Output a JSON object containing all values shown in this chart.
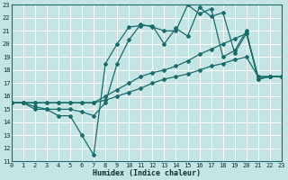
{
  "xlabel": "Humidex (Indice chaleur)",
  "bg_color": "#c5e5e5",
  "grid_color": "#ffffff",
  "line_color": "#1a6b6b",
  "xlim": [
    0,
    23
  ],
  "ylim": [
    11,
    23
  ],
  "xticks": [
    0,
    1,
    2,
    3,
    4,
    5,
    6,
    7,
    8,
    9,
    10,
    11,
    12,
    13,
    14,
    15,
    16,
    17,
    18,
    19,
    20,
    21,
    22,
    23
  ],
  "yticks": [
    11,
    12,
    13,
    14,
    15,
    16,
    17,
    18,
    19,
    20,
    21,
    22,
    23
  ],
  "lines": [
    [
      15.5,
      15.5,
      15.0,
      15.0,
      14.5,
      14.5,
      13.0,
      11.5,
      18.5,
      20.0,
      21.3,
      21.4,
      21.4,
      20.0,
      21.2,
      20.6,
      22.8,
      22.1,
      22.4,
      19.3,
      20.8,
      17.3,
      17.5,
      17.5
    ],
    [
      15.5,
      15.5,
      15.2,
      15.0,
      15.0,
      15.0,
      14.8,
      14.5,
      15.5,
      18.5,
      20.3,
      21.5,
      21.3,
      21.0,
      21.0,
      23.0,
      22.3,
      22.7,
      19.0,
      19.5,
      21.0,
      17.3,
      17.5,
      17.5
    ],
    [
      15.5,
      15.5,
      15.5,
      15.5,
      15.5,
      15.5,
      15.5,
      15.5,
      16.0,
      16.5,
      17.0,
      17.5,
      17.8,
      18.0,
      18.3,
      18.7,
      19.2,
      19.6,
      20.0,
      20.4,
      20.8,
      17.5,
      17.5,
      17.5
    ],
    [
      15.5,
      15.5,
      15.5,
      15.5,
      15.5,
      15.5,
      15.5,
      15.5,
      15.7,
      16.0,
      16.3,
      16.6,
      17.0,
      17.3,
      17.5,
      17.7,
      18.0,
      18.3,
      18.5,
      18.8,
      19.0,
      17.5,
      17.5,
      17.5
    ]
  ]
}
